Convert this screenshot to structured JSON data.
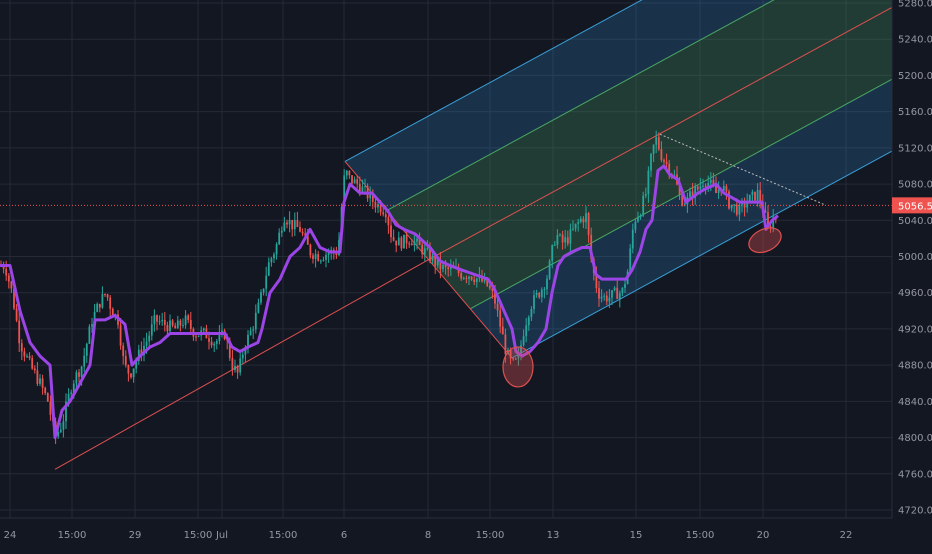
{
  "colors": {
    "background": "#131722",
    "grid": "#262a36",
    "axis_text": "#9598a1",
    "candle_up": "#26a69a",
    "candle_down": "#ef5350",
    "trend_line": "#9c45e6",
    "pitchfork_median": "#e05050",
    "pitchfork_band_outer": "#2a7bb5",
    "pitchfork_band_inner": "#3e8d5a",
    "price_line": "#ef5350",
    "price_badge": "#ef5350",
    "highlight_ellipse": "#e05050"
  },
  "chart_data": {
    "type": "candlestick",
    "instrument_note": "",
    "x_ticks": [
      "24",
      "15:00",
      "29",
      "15:00",
      "Jul",
      "15:00",
      "6",
      "8",
      "15:00",
      "13",
      "15",
      "15:00",
      "20",
      "22"
    ],
    "y_ticks": [
      4720,
      4760,
      4800,
      4840,
      4880,
      4920,
      4960,
      5000,
      5040,
      5080,
      5120,
      5160,
      5200,
      5240,
      5280
    ],
    "ylim": [
      4707,
      5283
    ],
    "last_price": "5056.5",
    "grid": true,
    "close_path": [
      [
        0,
        4990
      ],
      [
        5,
        4990
      ],
      [
        12,
        4960
      ],
      [
        20,
        4905
      ],
      [
        30,
        4880
      ],
      [
        40,
        4860
      ],
      [
        48,
        4840
      ],
      [
        55,
        4800
      ],
      [
        62,
        4815
      ],
      [
        72,
        4860
      ],
      [
        82,
        4880
      ],
      [
        92,
        4930
      ],
      [
        100,
        4950
      ],
      [
        106,
        4960
      ],
      [
        112,
        4940
      ],
      [
        118,
        4930
      ],
      [
        124,
        4880
      ],
      [
        130,
        4870
      ],
      [
        138,
        4890
      ],
      [
        146,
        4905
      ],
      [
        155,
        4930
      ],
      [
        165,
        4925
      ],
      [
        175,
        4920
      ],
      [
        185,
        4930
      ],
      [
        195,
        4915
      ],
      [
        205,
        4915
      ],
      [
        215,
        4905
      ],
      [
        225,
        4915
      ],
      [
        232,
        4880
      ],
      [
        238,
        4870
      ],
      [
        244,
        4900
      ],
      [
        252,
        4920
      ],
      [
        260,
        4950
      ],
      [
        268,
        4990
      ],
      [
        276,
        5010
      ],
      [
        284,
        5045
      ],
      [
        292,
        5035
      ],
      [
        300,
        5030
      ],
      [
        310,
        5005
      ],
      [
        320,
        5000
      ],
      [
        330,
        5005
      ],
      [
        338,
        5005
      ],
      [
        342,
        5060
      ],
      [
        345,
        5095
      ],
      [
        350,
        5085
      ],
      [
        358,
        5080
      ],
      [
        366,
        5070
      ],
      [
        374,
        5060
      ],
      [
        380,
        5055
      ],
      [
        386,
        5050
      ],
      [
        392,
        5020
      ],
      [
        400,
        5015
      ],
      [
        410,
        5020
      ],
      [
        420,
        5010
      ],
      [
        430,
        5000
      ],
      [
        438,
        4990
      ],
      [
        446,
        4985
      ],
      [
        454,
        4985
      ],
      [
        462,
        4980
      ],
      [
        470,
        4980
      ],
      [
        478,
        4975
      ],
      [
        486,
        4970
      ],
      [
        494,
        4955
      ],
      [
        500,
        4925
      ],
      [
        506,
        4895
      ],
      [
        512,
        4880
      ],
      [
        518,
        4885
      ],
      [
        524,
        4920
      ],
      [
        530,
        4945
      ],
      [
        536,
        4955
      ],
      [
        542,
        4965
      ],
      [
        548,
        4980
      ],
      [
        552,
        5005
      ],
      [
        556,
        5025
      ],
      [
        562,
        5015
      ],
      [
        568,
        5020
      ],
      [
        574,
        5030
      ],
      [
        580,
        5040
      ],
      [
        586,
        5045
      ],
      [
        592,
        4990
      ],
      [
        598,
        4960
      ],
      [
        604,
        4955
      ],
      [
        610,
        4955
      ],
      [
        616,
        4960
      ],
      [
        622,
        4960
      ],
      [
        628,
        4985
      ],
      [
        634,
        5040
      ],
      [
        640,
        5050
      ],
      [
        646,
        5070
      ],
      [
        652,
        5115
      ],
      [
        656,
        5130
      ],
      [
        662,
        5110
      ],
      [
        668,
        5100
      ],
      [
        674,
        5090
      ],
      [
        680,
        5065
      ],
      [
        686,
        5060
      ],
      [
        692,
        5070
      ],
      [
        698,
        5075
      ],
      [
        704,
        5085
      ],
      [
        710,
        5080
      ],
      [
        716,
        5070
      ],
      [
        722,
        5080
      ],
      [
        728,
        5060
      ],
      [
        734,
        5055
      ],
      [
        740,
        5050
      ],
      [
        746,
        5060
      ],
      [
        752,
        5065
      ],
      [
        758,
        5070
      ],
      [
        764,
        5050
      ],
      [
        768,
        5030
      ],
      [
        774,
        5045
      ],
      [
        778,
        5040
      ]
    ],
    "trend_path": [
      [
        0,
        4990
      ],
      [
        10,
        4990
      ],
      [
        20,
        4940
      ],
      [
        30,
        4905
      ],
      [
        40,
        4890
      ],
      [
        50,
        4880
      ],
      [
        55,
        4800
      ],
      [
        62,
        4830
      ],
      [
        70,
        4840
      ],
      [
        80,
        4860
      ],
      [
        90,
        4880
      ],
      [
        95,
        4930
      ],
      [
        105,
        4930
      ],
      [
        115,
        4935
      ],
      [
        125,
        4925
      ],
      [
        132,
        4880
      ],
      [
        140,
        4890
      ],
      [
        150,
        4900
      ],
      [
        160,
        4905
      ],
      [
        170,
        4915
      ],
      [
        180,
        4915
      ],
      [
        195,
        4915
      ],
      [
        210,
        4915
      ],
      [
        225,
        4915
      ],
      [
        232,
        4900
      ],
      [
        240,
        4895
      ],
      [
        248,
        4900
      ],
      [
        258,
        4905
      ],
      [
        262,
        4920
      ],
      [
        270,
        4960
      ],
      [
        280,
        4975
      ],
      [
        290,
        5000
      ],
      [
        300,
        5010
      ],
      [
        310,
        5030
      ],
      [
        320,
        5010
      ],
      [
        330,
        5005
      ],
      [
        340,
        5005
      ],
      [
        344,
        5060
      ],
      [
        350,
        5080
      ],
      [
        360,
        5070
      ],
      [
        372,
        5070
      ],
      [
        380,
        5060
      ],
      [
        388,
        5050
      ],
      [
        396,
        5035
      ],
      [
        404,
        5030
      ],
      [
        415,
        5025
      ],
      [
        430,
        5010
      ],
      [
        440,
        4995
      ],
      [
        450,
        4990
      ],
      [
        462,
        4985
      ],
      [
        475,
        4980
      ],
      [
        488,
        4975
      ],
      [
        494,
        4965
      ],
      [
        500,
        4950
      ],
      [
        508,
        4930
      ],
      [
        512,
        4920
      ],
      [
        516,
        4895
      ],
      [
        522,
        4890
      ],
      [
        530,
        4895
      ],
      [
        538,
        4905
      ],
      [
        546,
        4920
      ],
      [
        552,
        4960
      ],
      [
        558,
        4990
      ],
      [
        564,
        5000
      ],
      [
        572,
        5005
      ],
      [
        582,
        5010
      ],
      [
        590,
        5010
      ],
      [
        596,
        4980
      ],
      [
        602,
        4975
      ],
      [
        610,
        4975
      ],
      [
        618,
        4975
      ],
      [
        626,
        4975
      ],
      [
        632,
        4985
      ],
      [
        640,
        5005
      ],
      [
        646,
        5030
      ],
      [
        652,
        5040
      ],
      [
        658,
        5095
      ],
      [
        664,
        5100
      ],
      [
        670,
        5090
      ],
      [
        678,
        5085
      ],
      [
        686,
        5060
      ],
      [
        692,
        5065
      ],
      [
        698,
        5070
      ],
      [
        706,
        5075
      ],
      [
        716,
        5080
      ],
      [
        724,
        5070
      ],
      [
        732,
        5065
      ],
      [
        740,
        5060
      ],
      [
        748,
        5060
      ],
      [
        756,
        5060
      ],
      [
        762,
        5060
      ],
      [
        766,
        5030
      ],
      [
        772,
        5040
      ],
      [
        778,
        5045
      ]
    ],
    "pitchfork": {
      "anchor_low": [
        55,
        4765
      ],
      "anchor_high": [
        345,
        5105
      ],
      "anchor_low2": [
        512,
        4888
      ],
      "median_end": [
        895,
        5270
      ]
    },
    "down_trendline": {
      "from": [
        660,
        5135
      ],
      "to": [
        825,
        5057
      ]
    },
    "highlight_ellipses": [
      {
        "cx": 518,
        "cy": 4878
      },
      {
        "cx": 765,
        "cy": 5018
      }
    ]
  }
}
